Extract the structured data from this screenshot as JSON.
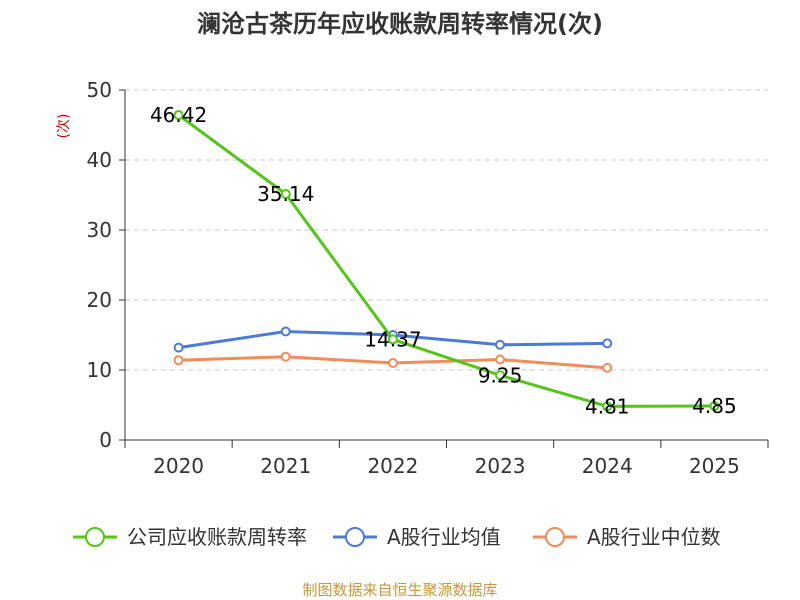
{
  "chart_data": {
    "type": "line",
    "title": "澜沧古茶历年应收账款周转率情况(次)",
    "ylabel": "(次)",
    "xlabel": "",
    "categories": [
      "2020",
      "2021",
      "2022",
      "2023",
      "2024",
      "2025"
    ],
    "yticks": [
      0,
      10,
      20,
      30,
      40,
      50
    ],
    "ylim": [
      0,
      50
    ],
    "grid": true,
    "legend_position": "bottom",
    "series": [
      {
        "name": "公司应收账款周转率",
        "color": "#52c41a",
        "values": [
          46.42,
          35.14,
          14.37,
          9.25,
          4.81,
          4.85
        ],
        "labels": [
          "46.42",
          "35.14",
          "14.37",
          "9.25",
          "4.81",
          "4.85"
        ],
        "show_labels": true
      },
      {
        "name": "A股行业均值",
        "color": "#4a7bd9",
        "values": [
          13.2,
          15.5,
          15.0,
          13.6,
          13.8,
          null
        ],
        "show_labels": false
      },
      {
        "name": "A股行业中位数",
        "color": "#f28c5a",
        "values": [
          11.4,
          11.9,
          11.0,
          11.5,
          10.3,
          null
        ],
        "show_labels": false
      }
    ],
    "source": "制图数据来自恒生聚源数据库",
    "source_color": "#c9973a",
    "ylabel_color": "#cc0000"
  }
}
